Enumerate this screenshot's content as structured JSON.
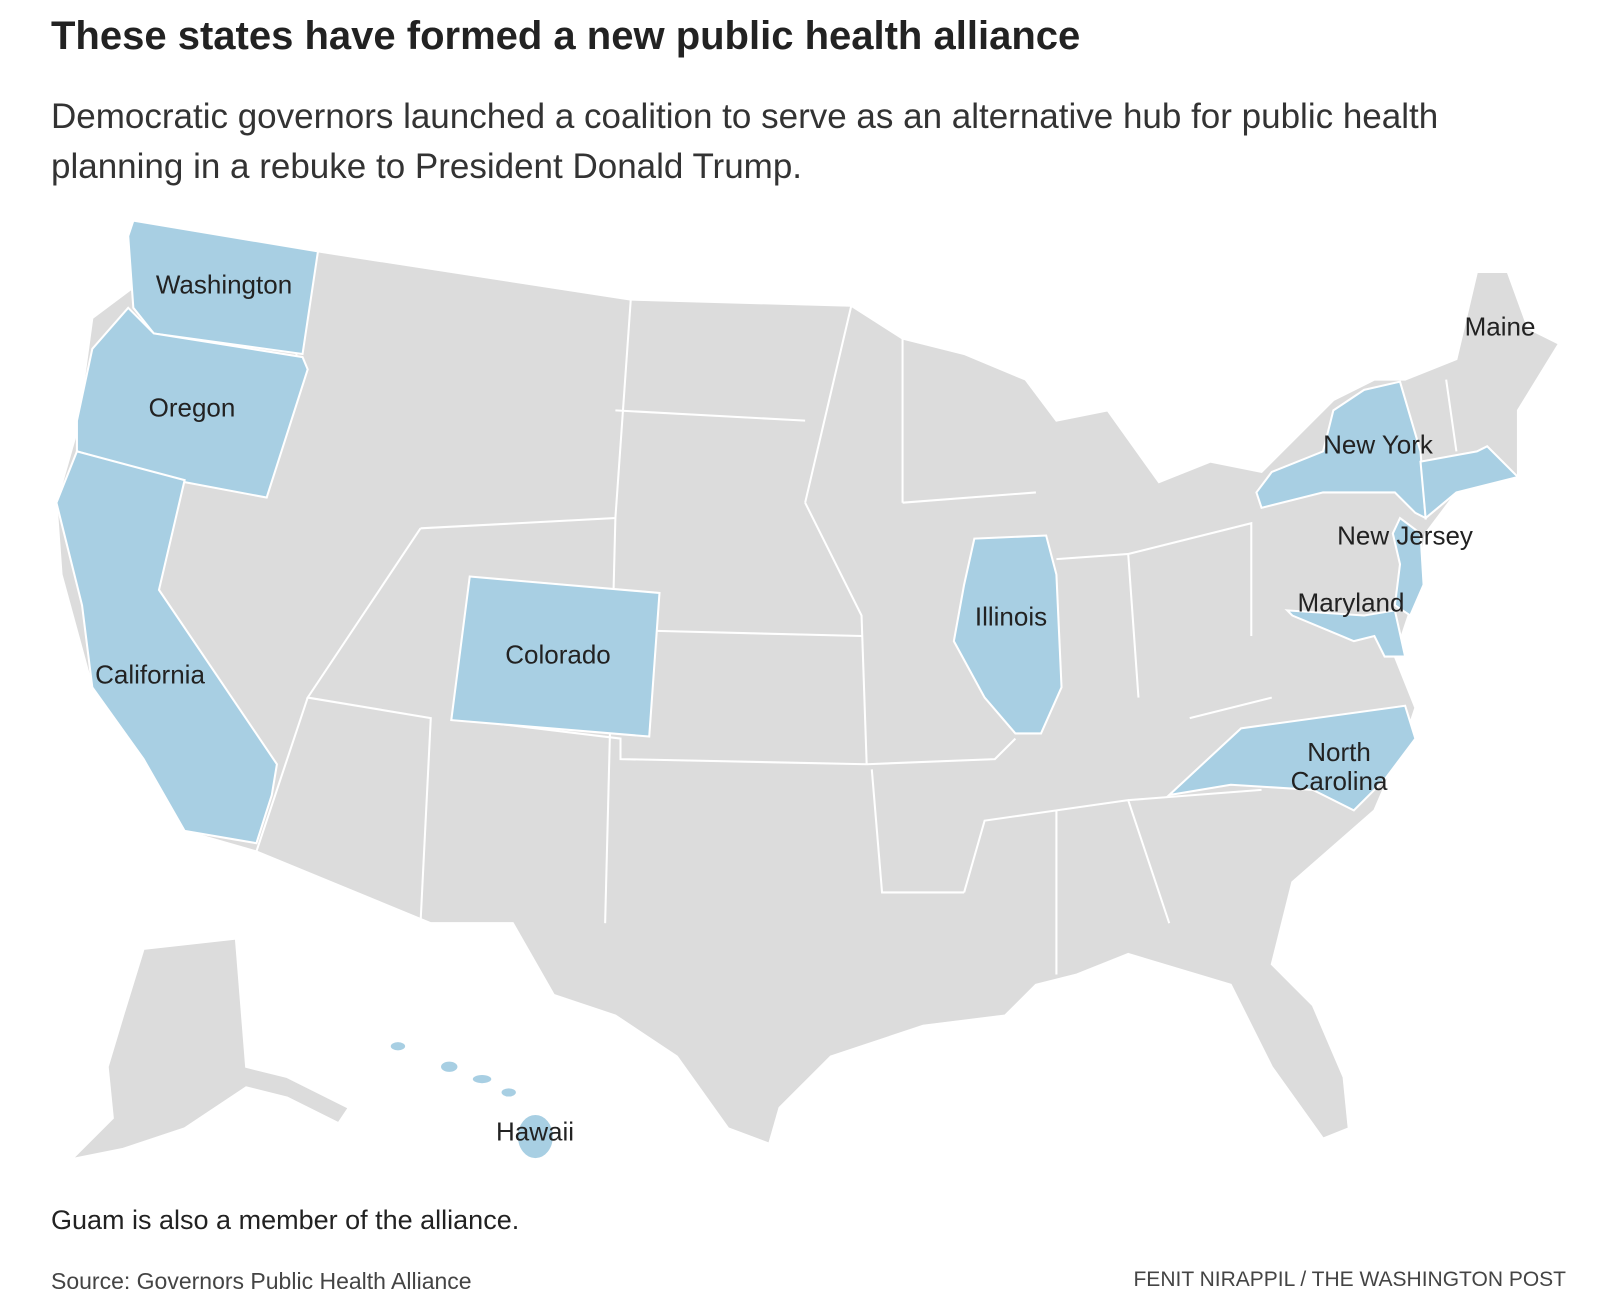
{
  "header": {
    "title": "These states have formed a new public health alliance",
    "subtitle": "Democratic governors launched a coalition to serve as an alternative hub for public health planning in a rebuke to President Donald Trump."
  },
  "map": {
    "labels": [
      "Washington",
      "Oregon",
      "California",
      "Colorado",
      "Illinois",
      "Maine",
      "New York",
      "New Jersey",
      "Maryland",
      "North Carolina",
      "Hawaii"
    ]
  },
  "note": "Guam is also a member of the alliance.",
  "footer": {
    "source": "Source: Governors Public Health Alliance",
    "credit": "FENIT NIRAPPIL / THE WASHINGTON POST"
  }
}
